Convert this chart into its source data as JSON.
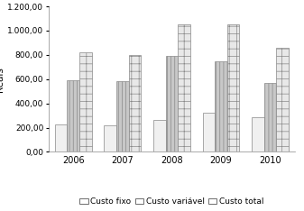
{
  "years": [
    "2006",
    "2007",
    "2008",
    "2009",
    "2010"
  ],
  "custo_fixo": [
    230,
    220,
    265,
    320,
    285
  ],
  "custo_variavel": [
    590,
    580,
    790,
    745,
    570
  ],
  "custo_total": [
    820,
    800,
    1050,
    1055,
    855
  ],
  "ylabel": "Reais",
  "ylim": [
    0,
    1200
  ],
  "yticks": [
    0,
    200,
    400,
    600,
    800,
    1000,
    1200
  ],
  "legend_labels": [
    "Custo fixo",
    "Custo variável",
    "Custo total"
  ],
  "bar_colors": [
    "#f0f0f0",
    "#c8c8c8",
    "#e8e8e8"
  ],
  "bar_hatches": [
    null,
    "||||",
    "++"
  ],
  "bar_edgecolors": [
    "#888888",
    "#888888",
    "#888888"
  ],
  "hatch_colors": [
    "#888888",
    "#888888",
    "#888888"
  ]
}
